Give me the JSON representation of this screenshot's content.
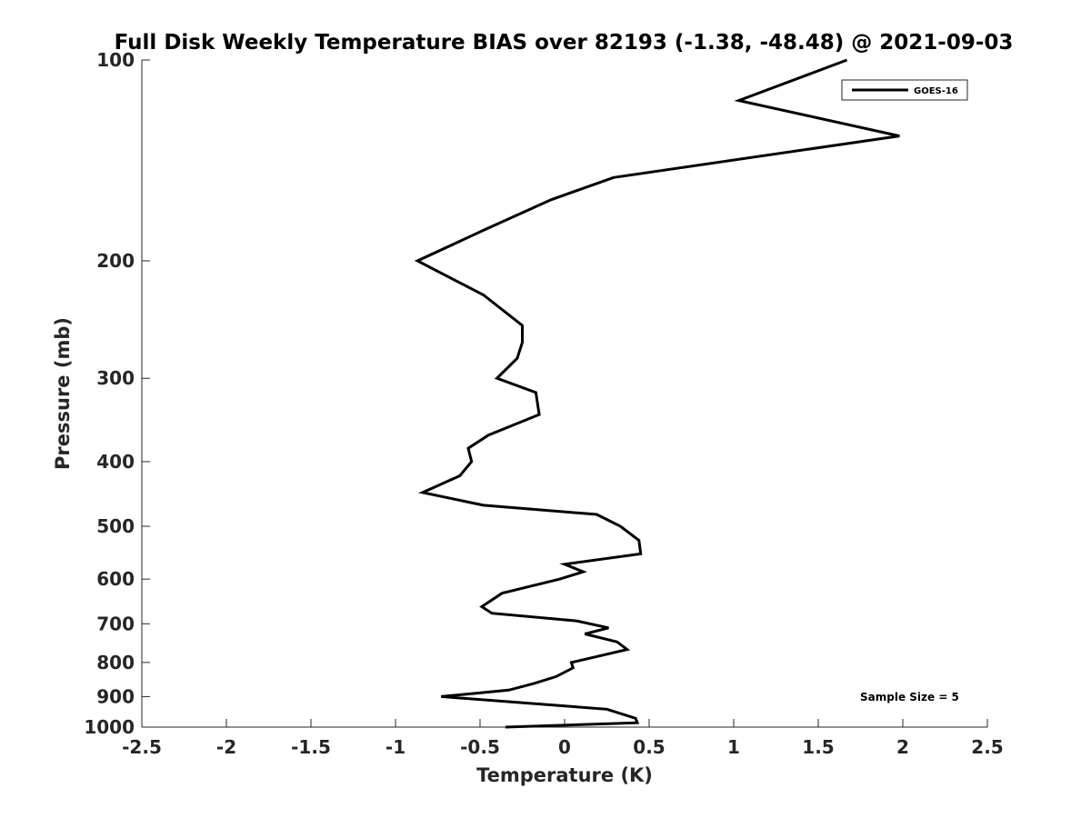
{
  "chart_data": {
    "type": "line",
    "title": "Full Disk Weekly Temperature BIAS over 82193 (-1.38, -48.48) @ 2021-09-03",
    "xlabel": "Temperature (K)",
    "ylabel": "Pressure (mb)",
    "xlim": [
      -2.5,
      2.5
    ],
    "ylim": [
      100,
      1000
    ],
    "y_scale": "log",
    "y_reversed": true,
    "x_ticks": [
      -2.5,
      -2,
      -1.5,
      -1,
      -0.5,
      0,
      0.5,
      1,
      1.5,
      2,
      2.5
    ],
    "x_tick_labels": [
      "-2.5",
      "-2",
      "-1.5",
      "-1",
      "-0.5",
      "0",
      "0.5",
      "1",
      "1.5",
      "2",
      "2.5"
    ],
    "y_ticks": [
      100,
      200,
      300,
      400,
      500,
      600,
      700,
      800,
      900,
      1000
    ],
    "y_tick_labels": [
      "100",
      "200",
      "300",
      "400",
      "500",
      "600",
      "700",
      "800",
      "900",
      "1000"
    ],
    "grid": false,
    "legend_position": "top-right",
    "annotation": "Sample Size = 5",
    "color": "#000000",
    "series": [
      {
        "name": "GOES-16",
        "points": [
          {
            "x": 1.67,
            "p": 100
          },
          {
            "x": 1.03,
            "p": 115
          },
          {
            "x": 1.98,
            "p": 130
          },
          {
            "x": 0.29,
            "p": 150
          },
          {
            "x": -0.08,
            "p": 162
          },
          {
            "x": -0.48,
            "p": 180
          },
          {
            "x": -0.87,
            "p": 200
          },
          {
            "x": -0.48,
            "p": 225
          },
          {
            "x": -0.25,
            "p": 250
          },
          {
            "x": -0.25,
            "p": 265
          },
          {
            "x": -0.28,
            "p": 280
          },
          {
            "x": -0.4,
            "p": 300
          },
          {
            "x": -0.17,
            "p": 315
          },
          {
            "x": -0.15,
            "p": 340
          },
          {
            "x": -0.45,
            "p": 365
          },
          {
            "x": -0.57,
            "p": 382
          },
          {
            "x": -0.55,
            "p": 400
          },
          {
            "x": -0.62,
            "p": 420
          },
          {
            "x": -0.84,
            "p": 445
          },
          {
            "x": -0.48,
            "p": 465
          },
          {
            "x": 0.19,
            "p": 480
          },
          {
            "x": 0.33,
            "p": 500
          },
          {
            "x": 0.44,
            "p": 525
          },
          {
            "x": 0.45,
            "p": 550
          },
          {
            "x": 0.0,
            "p": 570
          },
          {
            "x": 0.11,
            "p": 585
          },
          {
            "x": -0.03,
            "p": 600
          },
          {
            "x": -0.37,
            "p": 630
          },
          {
            "x": -0.49,
            "p": 660
          },
          {
            "x": -0.43,
            "p": 675
          },
          {
            "x": 0.07,
            "p": 693
          },
          {
            "x": 0.26,
            "p": 710
          },
          {
            "x": 0.12,
            "p": 725
          },
          {
            "x": 0.31,
            "p": 745
          },
          {
            "x": 0.37,
            "p": 765
          },
          {
            "x": 0.04,
            "p": 800
          },
          {
            "x": 0.05,
            "p": 815
          },
          {
            "x": -0.05,
            "p": 840
          },
          {
            "x": -0.18,
            "p": 860
          },
          {
            "x": -0.33,
            "p": 880
          },
          {
            "x": -0.73,
            "p": 900
          },
          {
            "x": 0.25,
            "p": 940
          },
          {
            "x": 0.42,
            "p": 970
          },
          {
            "x": 0.43,
            "p": 985
          },
          {
            "x": -0.35,
            "p": 1000
          }
        ]
      }
    ]
  }
}
